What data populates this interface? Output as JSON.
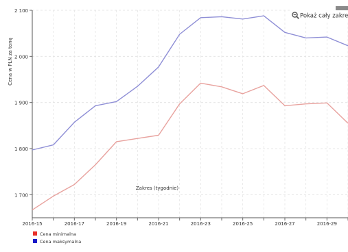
{
  "chart_data": {
    "type": "line",
    "ylabel": "Cena w PLN za tonę",
    "xlabel": "Zakres (tygodnie)",
    "ylim": [
      1650,
      2100
    ],
    "yticks": [
      1700,
      1800,
      1900,
      2000,
      2100
    ],
    "ytick_labels": [
      "1 700",
      "1 800",
      "1 900",
      "2 000",
      "2 100"
    ],
    "x": [
      "2016-15",
      "2016-16",
      "2016-17",
      "2016-18",
      "2016-19",
      "2016-20",
      "2016-21",
      "2016-22",
      "2016-23",
      "2016-24",
      "2016-25",
      "2016-26",
      "2016-27",
      "2016-28",
      "2016-29",
      "2016-30"
    ],
    "xtick_labels": [
      "2016-15",
      "2016-17",
      "2016-19",
      "2016-21",
      "2016-23",
      "2016-25",
      "2016-27",
      "2016-29"
    ],
    "grid": true,
    "legend_position": "bottom-left",
    "series": [
      {
        "name": "Cena minimalna",
        "color": "#e8302a",
        "line_color": "#e8a29e",
        "values": [
          1667,
          1697,
          1722,
          1765,
          1815,
          1822,
          1829,
          1897,
          1942,
          1934,
          1919,
          1937,
          1893,
          1897,
          1899,
          1855
        ]
      },
      {
        "name": "Cena maksymalna",
        "color": "#1a1ac8",
        "line_color": "#8f8fd6",
        "values": [
          1797,
          1808,
          1857,
          1893,
          1902,
          1935,
          1977,
          2048,
          2084,
          2086,
          2081,
          2088,
          2052,
          2040,
          2042,
          2023
        ]
      }
    ]
  },
  "zoom_button": {
    "label": "Pokaż cały zakres",
    "icon": "magnifier-minus-icon"
  }
}
